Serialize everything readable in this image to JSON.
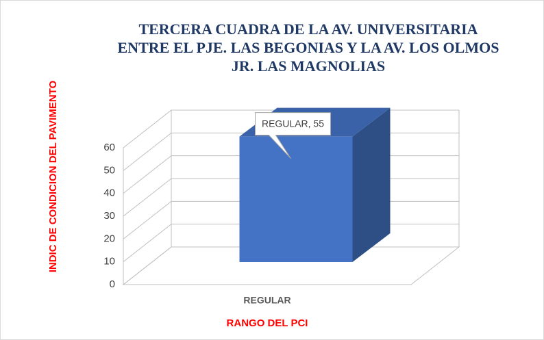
{
  "chart_data": {
    "type": "bar3d",
    "title": [
      "TERCERA CUADRA DE LA AV. UNIVERSITARIA",
      "ENTRE EL PJE. LAS BEGONIAS Y LA AV. LOS OLMOS",
      "JR. LAS MAGNOLIAS"
    ],
    "categories": [
      "REGULAR"
    ],
    "values": [
      55
    ],
    "value_labels": [
      "REGULAR, 55"
    ],
    "color": "#4472c4",
    "x_label": "RANGO DEL PCI",
    "y_label": "INDIC DE CONDICION DEL PAVIMENTO",
    "ylim": [
      0,
      60
    ],
    "yticks": [
      0,
      10,
      20,
      30,
      40,
      50,
      60
    ],
    "grid": true
  }
}
